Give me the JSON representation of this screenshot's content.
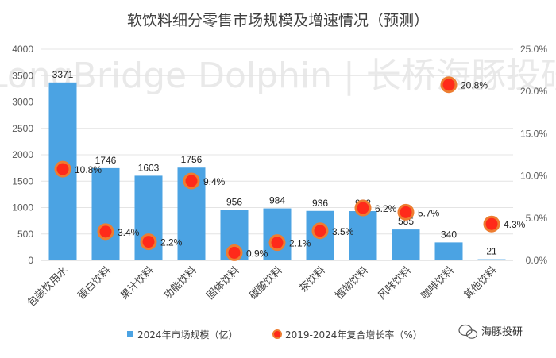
{
  "chart_data": {
    "type": "bar+scatter",
    "title": "软饮料细分零售市场规模及增速情况（预测）",
    "categories": [
      "包装饮用水",
      "蛋白饮料",
      "果汁饮料",
      "功能饮料",
      "固体饮料",
      "碳酸饮料",
      "茶饮料",
      "植物饮料",
      "风味饮料",
      "咖啡饮料",
      "其他饮料"
    ],
    "series": [
      {
        "name": "2024年市场规模（亿）",
        "kind": "bar",
        "axis": "left",
        "color": "#4ba3e3",
        "values": [
          3371,
          1746,
          1603,
          1756,
          956,
          984,
          936,
          932,
          585,
          340,
          21
        ],
        "labels": [
          "3371",
          "1746",
          "1603",
          "1756",
          "956",
          "984",
          "936",
          "932",
          "585",
          "340",
          "21"
        ]
      },
      {
        "name": "2019-2024年复合增长率（%）",
        "kind": "scatter",
        "axis": "right",
        "color": "#ff2a1a",
        "ring_color": "#ed7d31",
        "values": [
          10.8,
          3.4,
          2.2,
          9.4,
          0.9,
          2.1,
          3.5,
          6.2,
          5.7,
          20.8,
          4.3
        ],
        "labels": [
          "10.8%",
          "3.4%",
          "2.2%",
          "9.4%",
          "0.9%",
          "2.1%",
          "3.5%",
          "6.2%",
          "5.7%",
          "20.8%",
          "4.3%"
        ]
      }
    ],
    "ylim_left": [
      0,
      4000
    ],
    "yticks_left": [
      "0",
      "500",
      "1000",
      "1500",
      "2000",
      "2500",
      "3000",
      "3500",
      "4000"
    ],
    "ylim_right": [
      0,
      25
    ],
    "yticks_right": [
      "0.0%",
      "5.0%",
      "10.0%",
      "15.0%",
      "20.0%",
      "25.0%"
    ],
    "legend": [
      "2024年市场规模（亿）",
      "2019-2024年复合增长率（%）"
    ],
    "legend_position": "bottom"
  },
  "watermark": "LongBridge Dolphin | 长桥海豚投研",
  "brand": "海豚投研"
}
